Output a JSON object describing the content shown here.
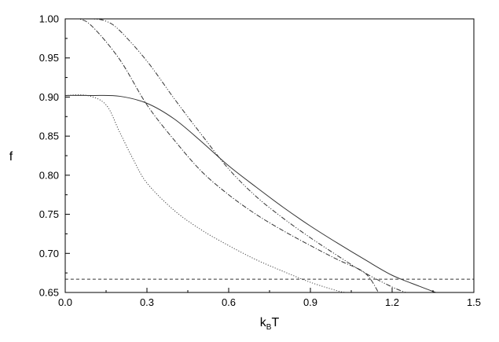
{
  "chart_data": {
    "type": "line",
    "title": "",
    "xlabel": "k",
    "xlabel_sub": "B",
    "xlabel_rest": "T",
    "ylabel": "f",
    "xlim": [
      0.0,
      1.5
    ],
    "ylim": [
      0.65,
      1.0
    ],
    "x_ticks": [
      0.0,
      0.3,
      0.6,
      0.9,
      1.2,
      1.5
    ],
    "x_tick_labels": [
      "0.0",
      "0.3",
      "0.6",
      "0.9",
      "1.2",
      "1.5"
    ],
    "y_ticks": [
      0.65,
      0.7,
      0.75,
      0.8,
      0.85,
      0.9,
      0.95,
      1.0
    ],
    "y_tick_labels": [
      "0.65",
      "0.70",
      "0.75",
      "0.80",
      "0.85",
      "0.90",
      "0.95",
      "1.00"
    ],
    "grid": false,
    "legend": "none",
    "series": [
      {
        "style": "solid",
        "color": "#333333",
        "points": [
          [
            0.0,
            0.902
          ],
          [
            0.1,
            0.902
          ],
          [
            0.2,
            0.901
          ],
          [
            0.3,
            0.892
          ],
          [
            0.4,
            0.872
          ],
          [
            0.5,
            0.843
          ],
          [
            0.6,
            0.812
          ],
          [
            0.7,
            0.785
          ],
          [
            0.8,
            0.759
          ],
          [
            0.9,
            0.735
          ],
          [
            1.0,
            0.713
          ],
          [
            1.1,
            0.692
          ],
          [
            1.2,
            0.672
          ],
          [
            1.3,
            0.658
          ],
          [
            1.36,
            0.65
          ]
        ]
      },
      {
        "style": "dash-dot-dot",
        "color": "#333333",
        "points": [
          [
            0.0,
            1.0
          ],
          [
            0.1,
            1.0
          ],
          [
            0.15,
            0.997
          ],
          [
            0.2,
            0.985
          ],
          [
            0.3,
            0.946
          ],
          [
            0.4,
            0.898
          ],
          [
            0.5,
            0.852
          ],
          [
            0.6,
            0.808
          ],
          [
            0.7,
            0.773
          ],
          [
            0.8,
            0.745
          ],
          [
            0.9,
            0.72
          ],
          [
            1.0,
            0.697
          ],
          [
            1.1,
            0.675
          ],
          [
            1.2,
            0.657
          ],
          [
            1.25,
            0.65
          ]
        ]
      },
      {
        "style": "dash-dot",
        "color": "#333333",
        "points": [
          [
            0.0,
            1.0
          ],
          [
            0.05,
            1.0
          ],
          [
            0.1,
            0.99
          ],
          [
            0.2,
            0.948
          ],
          [
            0.3,
            0.89
          ],
          [
            0.4,
            0.845
          ],
          [
            0.5,
            0.805
          ],
          [
            0.6,
            0.775
          ],
          [
            0.7,
            0.75
          ],
          [
            0.8,
            0.729
          ],
          [
            0.9,
            0.71
          ],
          [
            1.0,
            0.692
          ],
          [
            1.1,
            0.675
          ],
          [
            1.15,
            0.65
          ]
        ]
      },
      {
        "style": "dotted",
        "color": "#444444",
        "points": [
          [
            0.0,
            0.902
          ],
          [
            0.08,
            0.902
          ],
          [
            0.15,
            0.89
          ],
          [
            0.2,
            0.855
          ],
          [
            0.25,
            0.82
          ],
          [
            0.3,
            0.79
          ],
          [
            0.4,
            0.755
          ],
          [
            0.5,
            0.73
          ],
          [
            0.6,
            0.71
          ],
          [
            0.7,
            0.692
          ],
          [
            0.8,
            0.677
          ],
          [
            0.9,
            0.663
          ],
          [
            1.0,
            0.652
          ],
          [
            1.03,
            0.65
          ]
        ]
      },
      {
        "style": "dashed",
        "color": "#333333",
        "points": [
          [
            0.0,
            0.667
          ],
          [
            1.5,
            0.667
          ]
        ]
      }
    ]
  }
}
